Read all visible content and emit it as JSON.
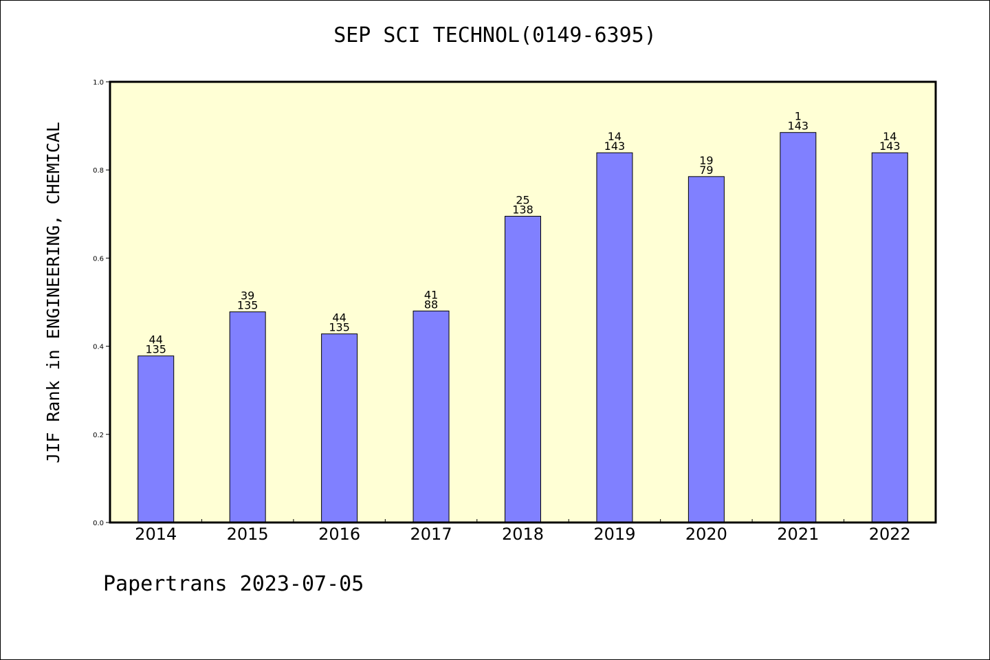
{
  "title": "SEP SCI TECHNOL(0149-6395)",
  "footer": "Papertrans 2023-07-05",
  "colors": {
    "plot_background": "#ffffd5",
    "bar_fill": "#8080ff",
    "bar_stroke": "#000000"
  },
  "chart_data": {
    "type": "bar",
    "title": "SEP SCI TECHNOL(0149-6395)",
    "xlabel": "",
    "ylabel": "JIF Rank in ENGINEERING, CHEMICAL",
    "ylim": [
      0,
      1.0
    ],
    "yticks": [
      "0.0",
      "0.2",
      "0.4",
      "0.6",
      "0.8",
      "1.0"
    ],
    "grid": false,
    "categories": [
      "2014",
      "2015",
      "2016",
      "2017",
      "2018",
      "2019",
      "2020",
      "2021",
      "2022"
    ],
    "values": [
      0.378,
      0.478,
      0.428,
      0.48,
      0.695,
      0.839,
      0.785,
      0.885,
      0.839
    ],
    "labels": [
      {
        "rank": "44",
        "total": "135"
      },
      {
        "rank": "39",
        "total": "135"
      },
      {
        "rank": "44",
        "total": "135"
      },
      {
        "rank": "41",
        "total": "88"
      },
      {
        "rank": "25",
        "total": "138"
      },
      {
        "rank": "14",
        "total": "143"
      },
      {
        "rank": "19",
        "total": "79"
      },
      {
        "rank": "1",
        "total": "143"
      },
      {
        "rank": "14",
        "total": "143"
      }
    ]
  }
}
